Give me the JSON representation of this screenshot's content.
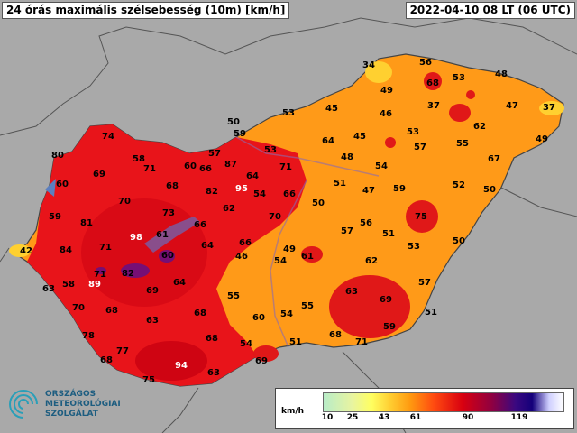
{
  "header": {
    "title": "24 órás maximális szélsebesség (10m) [km/h]",
    "datetime": "2022-04-10 08 LT (06 UTC)"
  },
  "legend": {
    "unit": "km/h",
    "ticks": [
      "10",
      "25",
      "43",
      "61",
      "90",
      "119"
    ]
  },
  "logo": {
    "line1": "ORSZÁGOS",
    "line2": "METEOROLÓGIAI",
    "line3": "SZOLGÁLAT"
  },
  "stations": [
    "34",
    "56",
    "53",
    "48",
    "68",
    "49",
    "53",
    "45",
    "37",
    "47",
    "37",
    "46",
    "62",
    "50",
    "59",
    "53",
    "64",
    "45",
    "53",
    "55",
    "49",
    "57",
    "71",
    "48",
    "64",
    "54",
    "57",
    "67",
    "58",
    "71",
    "60",
    "66",
    "87",
    "80",
    "74",
    "69",
    "60",
    "68",
    "82",
    "95",
    "54",
    "66",
    "51",
    "47",
    "59",
    "52",
    "50",
    "70",
    "73",
    "62",
    "70",
    "50",
    "56",
    "59",
    "81",
    "66",
    "75",
    "42",
    "84",
    "71",
    "98",
    "61",
    "64",
    "66",
    "49",
    "57",
    "51",
    "53",
    "50",
    "60",
    "46",
    "54",
    "61",
    "62",
    "71",
    "82",
    "58",
    "89",
    "64",
    "69",
    "63",
    "55",
    "63",
    "69",
    "57",
    "70",
    "68",
    "55",
    "51",
    "63",
    "68",
    "60",
    "54",
    "78",
    "68",
    "54",
    "51",
    "68",
    "71",
    "59",
    "77",
    "94",
    "68",
    "63",
    "75",
    "69"
  ]
}
